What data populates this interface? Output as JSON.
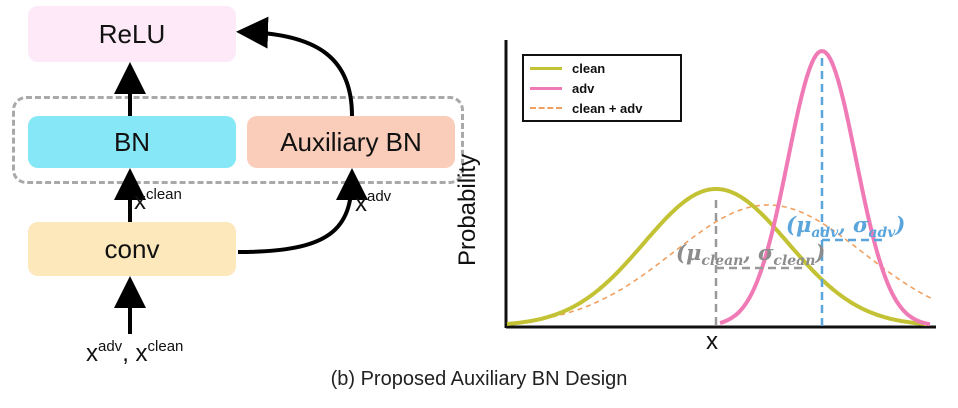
{
  "left_diagram": {
    "relu_label": "ReLU",
    "bn_label": "BN",
    "aux_bn_label": "Auxiliary BN",
    "conv_label": "conv",
    "x_clean_base": "x",
    "x_clean_sup": "clean",
    "x_adv_base": "x",
    "x_adv_sup": "adv",
    "input_x1": "x",
    "input_sup1": "adv",
    "input_sep": ", ",
    "input_x2": "x",
    "input_sup2": "clean"
  },
  "right_chart": {
    "ylabel": "Probability",
    "xlabel": "x",
    "legend": {
      "clean": "clean",
      "adv": "adv",
      "mix": "clean + adv"
    },
    "stat_adv": {
      "open": "(",
      "mu": "μ",
      "mu_sub": "adv",
      "sep": ", ",
      "sigma": "σ",
      "sigma_sub": "adv",
      "close": ")"
    },
    "stat_clean": {
      "open": "(",
      "mu": "μ",
      "mu_sub": "clean",
      "sep": ", ",
      "sigma": "σ",
      "sigma_sub": "clean",
      "close": ")"
    }
  },
  "colors": {
    "clean": "#c2c234",
    "adv": "#f07ab5",
    "mix": "#f0a060",
    "adv_stat": "#5aa6dc",
    "clean_stat": "#8c8c8c"
  },
  "caption": "(b) Proposed Auxiliary BN Design"
}
